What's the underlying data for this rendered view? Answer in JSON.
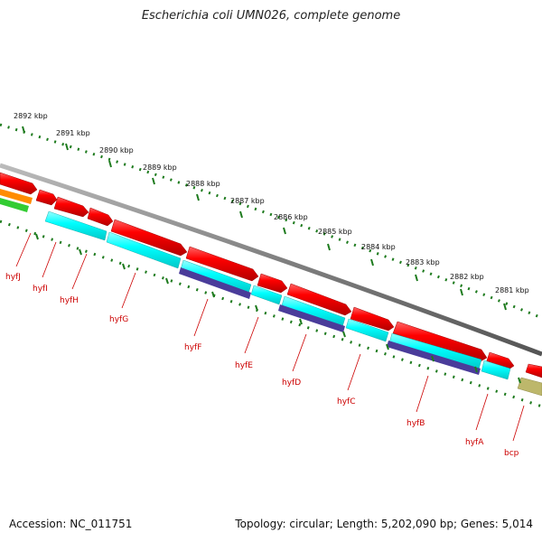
{
  "title": "Escherichia coli UMN026, complete genome",
  "accession": "Accession: NC_011751",
  "summary": "Topology: circular; Length: 5,202,090 bp; Genes: 5,014",
  "ruler": {
    "unit": "kbp",
    "labels": [
      "2892 kbp",
      "2891 kbp",
      "2890 kbp",
      "2889 kbp",
      "2888 kbp",
      "2887 kbp",
      "2886 kbp",
      "2885 kbp",
      "2884 kbp",
      "2883 kbp",
      "2882 kbp",
      "2881 kbp"
    ]
  },
  "genes": [
    {
      "name": "hyfJ"
    },
    {
      "name": "hyfI"
    },
    {
      "name": "hyfH"
    },
    {
      "name": "hyfG"
    },
    {
      "name": "hyfF"
    },
    {
      "name": "hyfE"
    },
    {
      "name": "hyfD"
    },
    {
      "name": "hyfC"
    },
    {
      "name": "hyfB"
    },
    {
      "name": "hyfA"
    },
    {
      "name": "bcp"
    }
  ],
  "colors": {
    "backbone": "#808080",
    "cds": "#ff0000",
    "cyan_track": "#00ffff",
    "blue_track": "#4a3c9a",
    "olive_feature": "#bdb76b",
    "orange_feature": "#ff8c00",
    "green_feature": "#33cc33",
    "ruler_ticks": "#1e7b1e",
    "label_text": "#cc0000"
  }
}
